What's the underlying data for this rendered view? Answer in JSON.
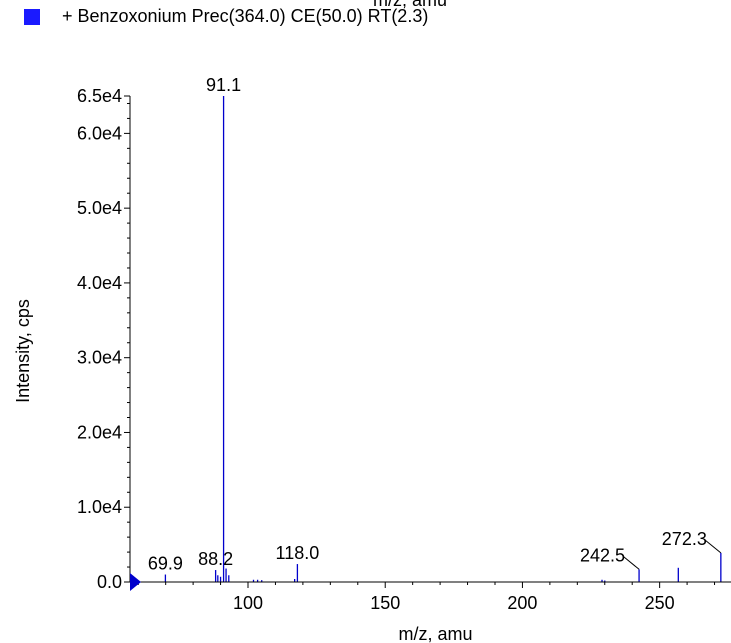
{
  "header": {
    "top_fragment": "m/z, amu"
  },
  "legend": {
    "label": "+ Benzoxonium Prec(364.0) CE(50.0) RT(2.3)",
    "color": "#1a1aff"
  },
  "chart_data": {
    "type": "bar",
    "xlabel": "m/z, amu",
    "ylabel": "Intensity, cps",
    "xlim": [
      57,
      276
    ],
    "ylim": [
      0,
      65000
    ],
    "x_ticks": [
      100,
      150,
      200,
      250
    ],
    "x_tick_labels": [
      "100",
      "150",
      "200",
      "250"
    ],
    "y_ticks": [
      0,
      10000,
      20000,
      30000,
      40000,
      50000,
      60000,
      65000
    ],
    "y_tick_labels": [
      "0.0",
      "1.0e4",
      "2.0e4",
      "3.0e4",
      "4.0e4",
      "5.0e4",
      "6.0e4",
      "6.5e4"
    ],
    "series_color": "#0000cc",
    "marker_color": "#0000cc",
    "peaks": [
      {
        "x": 69.9,
        "y": 1000
      },
      {
        "x": 88.2,
        "y": 1600
      },
      {
        "x": 89.0,
        "y": 900
      },
      {
        "x": 90.0,
        "y": 700
      },
      {
        "x": 91.1,
        "y": 65000
      },
      {
        "x": 92.0,
        "y": 1800
      },
      {
        "x": 93.0,
        "y": 900
      },
      {
        "x": 102.0,
        "y": 300
      },
      {
        "x": 103.5,
        "y": 300
      },
      {
        "x": 105.0,
        "y": 250
      },
      {
        "x": 117.0,
        "y": 400
      },
      {
        "x": 118.0,
        "y": 2400
      },
      {
        "x": 229.0,
        "y": 300
      },
      {
        "x": 230.0,
        "y": 200
      },
      {
        "x": 242.5,
        "y": 1700
      },
      {
        "x": 256.8,
        "y": 1900
      },
      {
        "x": 272.3,
        "y": 3900
      }
    ],
    "annotations": [
      {
        "text": "69.9",
        "x": 69.9,
        "y": 1000
      },
      {
        "text": "88.2",
        "x": 88.2,
        "y": 1600
      },
      {
        "text": "91.1",
        "x": 91.1,
        "y": 65000
      },
      {
        "text": "118.0",
        "x": 118.0,
        "y": 2400
      },
      {
        "text": "242.5",
        "x": 242.5,
        "y": 1700,
        "leader": true
      },
      {
        "text": "272.3",
        "x": 272.3,
        "y": 3900,
        "leader": true
      }
    ]
  }
}
